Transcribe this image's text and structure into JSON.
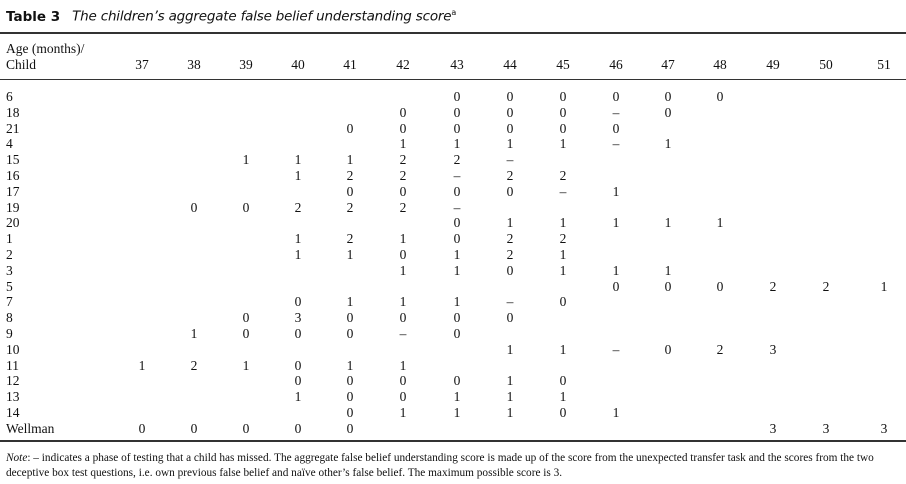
{
  "table": {
    "label": "Table 3",
    "caption": "The children’s aggregate false belief understanding score",
    "caption_footnote_marker": "a",
    "header_line1": "Age (months)/",
    "header_line2": "Child",
    "columns": [
      "37",
      "38",
      "39",
      "40",
      "41",
      "42",
      "43",
      "44",
      "45",
      "46",
      "47",
      "48",
      "49",
      "50",
      "51"
    ],
    "rows": [
      {
        "child": "6",
        "values": [
          "",
          "",
          "",
          "",
          "",
          "",
          "0",
          "0",
          "0",
          "0",
          "0",
          "0",
          "",
          "",
          ""
        ]
      },
      {
        "child": "18",
        "values": [
          "",
          "",
          "",
          "",
          "",
          "0",
          "0",
          "0",
          "0",
          "–",
          "0",
          "",
          "",
          "",
          ""
        ]
      },
      {
        "child": "21",
        "values": [
          "",
          "",
          "",
          "",
          "0",
          "0",
          "0",
          "0",
          "0",
          "0",
          "",
          "",
          "",
          "",
          ""
        ]
      },
      {
        "child": "4",
        "values": [
          "",
          "",
          "",
          "",
          "",
          "1",
          "1",
          "1",
          "1",
          "–",
          "1",
          "",
          "",
          "",
          ""
        ]
      },
      {
        "child": "15",
        "values": [
          "",
          "",
          "1",
          "1",
          "1",
          "2",
          "2",
          "–",
          "",
          "",
          "",
          "",
          "",
          "",
          ""
        ]
      },
      {
        "child": "16",
        "values": [
          "",
          "",
          "",
          "1",
          "2",
          "2",
          "–",
          "2",
          "2",
          "",
          "",
          "",
          "",
          "",
          ""
        ]
      },
      {
        "child": "17",
        "values": [
          "",
          "",
          "",
          "",
          "0",
          "0",
          "0",
          "0",
          "–",
          "1",
          "",
          "",
          "",
          "",
          ""
        ]
      },
      {
        "child": "19",
        "values": [
          "",
          "0",
          "0",
          "2",
          "2",
          "2",
          "–",
          "",
          "",
          "",
          "",
          "",
          "",
          "",
          ""
        ]
      },
      {
        "child": "20",
        "values": [
          "",
          "",
          "",
          "",
          "",
          "",
          "0",
          "1",
          "1",
          "1",
          "1",
          "1",
          "",
          "",
          ""
        ]
      },
      {
        "child": "1",
        "values": [
          "",
          "",
          "",
          "1",
          "2",
          "1",
          "0",
          "2",
          "2",
          "",
          "",
          "",
          "",
          "",
          ""
        ]
      },
      {
        "child": "2",
        "values": [
          "",
          "",
          "",
          "1",
          "1",
          "0",
          "1",
          "2",
          "1",
          "",
          "",
          "",
          "",
          "",
          ""
        ]
      },
      {
        "child": "3",
        "values": [
          "",
          "",
          "",
          "",
          "",
          "1",
          "1",
          "0",
          "1",
          "1",
          "1",
          "",
          "",
          "",
          ""
        ]
      },
      {
        "child": "5",
        "values": [
          "",
          "",
          "",
          "",
          "",
          "",
          "",
          "",
          "",
          "0",
          "0",
          "0",
          "2",
          "2",
          "1"
        ]
      },
      {
        "child": "7",
        "values": [
          "",
          "",
          "",
          "0",
          "1",
          "1",
          "1",
          "–",
          "0",
          "",
          "",
          "",
          "",
          "",
          ""
        ]
      },
      {
        "child": "8",
        "values": [
          "",
          "",
          "0",
          "3",
          "0",
          "0",
          "0",
          "0",
          "",
          "",
          "",
          "",
          "",
          "",
          ""
        ]
      },
      {
        "child": "9",
        "values": [
          "",
          "1",
          "0",
          "0",
          "0",
          "–",
          "0",
          "",
          "",
          "",
          "",
          "",
          "",
          "",
          ""
        ]
      },
      {
        "child": "10",
        "values": [
          "",
          "",
          "",
          "",
          "",
          "",
          "",
          "1",
          "1",
          "–",
          "0",
          "2",
          "3",
          "",
          ""
        ]
      },
      {
        "child": "11",
        "values": [
          "1",
          "2",
          "1",
          "0",
          "1",
          "1",
          "",
          "",
          "",
          "",
          "",
          "",
          "",
          "",
          ""
        ]
      },
      {
        "child": "12",
        "values": [
          "",
          "",
          "",
          "0",
          "0",
          "0",
          "0",
          "1",
          "0",
          "",
          "",
          "",
          "",
          "",
          ""
        ]
      },
      {
        "child": "13",
        "values": [
          "",
          "",
          "",
          "1",
          "0",
          "0",
          "1",
          "1",
          "1",
          "",
          "",
          "",
          "",
          "",
          ""
        ]
      },
      {
        "child": "14",
        "values": [
          "",
          "",
          "",
          "",
          "0",
          "1",
          "1",
          "1",
          "0",
          "1",
          "",
          "",
          "",
          "",
          ""
        ]
      },
      {
        "child": "Wellman",
        "values": [
          "0",
          "0",
          "0",
          "0",
          "0",
          "",
          "",
          "",
          "",
          "",
          "",
          "",
          "3",
          "3",
          "3"
        ]
      }
    ]
  },
  "note": {
    "label": "Note",
    "text": ": – indicates a phase of testing that a child has missed. The aggregate false belief understanding score is made up of the score from the unexpected transfer task and the scores from the two deceptive box test questions, i.e. own previous false belief and naïve other’s false belief. The maximum possible score is 3."
  }
}
